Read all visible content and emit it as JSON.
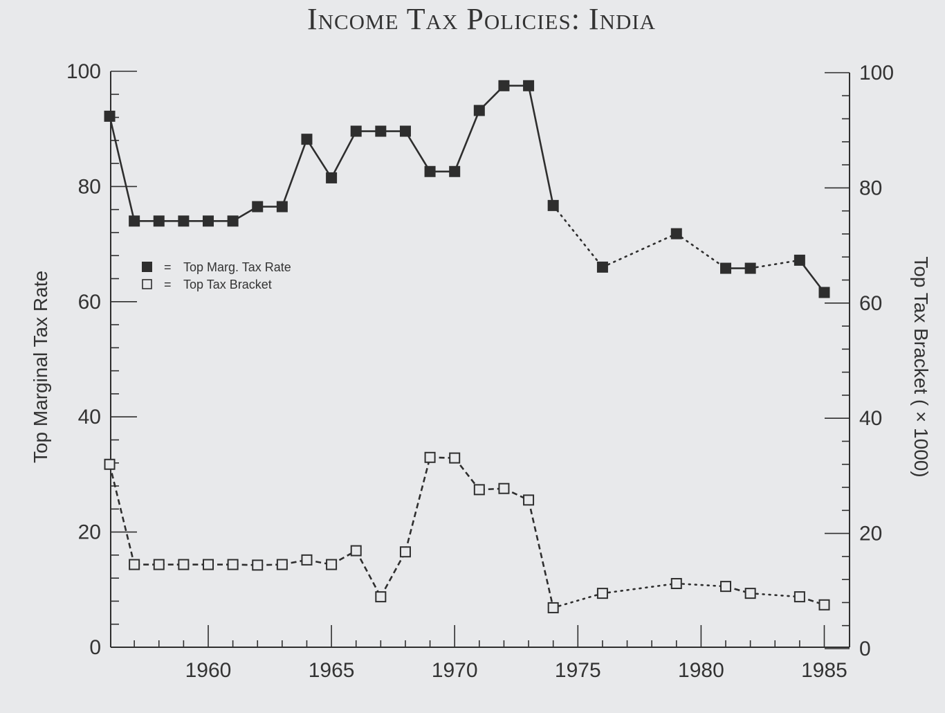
{
  "title": "Income Tax Policies: India",
  "chart_data": {
    "type": "line",
    "title": "Income Tax Policies: India",
    "xlabel": "",
    "ylabel": "Top Marginal Tax Rate",
    "ylabel_right": "Top Tax Bracket ( × 1000)",
    "xlim": [
      1956,
      1986
    ],
    "ylim": [
      0,
      100
    ],
    "ylim_right": [
      0,
      100
    ],
    "x_ticks": [
      1960,
      1965,
      1970,
      1975,
      1980,
      1985
    ],
    "y_ticks": [
      0,
      20,
      40,
      60,
      80,
      100
    ],
    "y_ticks_right": [
      0,
      20,
      40,
      60,
      80,
      100
    ],
    "grid": false,
    "legend_position": "upper left (inside)",
    "legend": [
      {
        "marker": "filled-square",
        "label": "Top Marg. Tax Rate"
      },
      {
        "marker": "open-square",
        "label": "Top Tax Bracket"
      }
    ],
    "series": [
      {
        "name": "Top Marg. Tax Rate",
        "axis": "left",
        "marker": "filled-square",
        "line": "solid (dotted across missing years)",
        "points": [
          [
            1956,
            92.2
          ],
          [
            1957,
            74.0
          ],
          [
            1958,
            74.0
          ],
          [
            1959,
            74.0
          ],
          [
            1960,
            74.0
          ],
          [
            1961,
            74.0
          ],
          [
            1962,
            76.5
          ],
          [
            1963,
            76.5
          ],
          [
            1964,
            88.2
          ],
          [
            1965,
            81.5
          ],
          [
            1966,
            89.6
          ],
          [
            1967,
            89.6
          ],
          [
            1968,
            89.6
          ],
          [
            1969,
            82.6
          ],
          [
            1970,
            82.6
          ],
          [
            1971,
            93.2
          ],
          [
            1972,
            97.5
          ],
          [
            1973,
            97.5
          ],
          [
            1974,
            76.7
          ],
          [
            1976,
            66.0
          ],
          [
            1979,
            71.8
          ],
          [
            1981,
            65.8
          ],
          [
            1982,
            65.8
          ],
          [
            1984,
            67.2
          ],
          [
            1985,
            61.6
          ]
        ]
      },
      {
        "name": "Top Tax Bracket",
        "axis": "right",
        "unit": "× 1000",
        "marker": "open-square",
        "line": "dashed (dotted across missing years)",
        "points": [
          [
            1956,
            32.0
          ],
          [
            1957,
            14.6
          ],
          [
            1958,
            14.6
          ],
          [
            1959,
            14.6
          ],
          [
            1960,
            14.6
          ],
          [
            1961,
            14.6
          ],
          [
            1962,
            14.5
          ],
          [
            1963,
            14.6
          ],
          [
            1964,
            15.4
          ],
          [
            1965,
            14.6
          ],
          [
            1966,
            17.0
          ],
          [
            1967,
            9.0
          ],
          [
            1968,
            16.8
          ],
          [
            1969,
            33.2
          ],
          [
            1970,
            33.1
          ],
          [
            1971,
            27.6
          ],
          [
            1972,
            27.8
          ],
          [
            1973,
            25.8
          ],
          [
            1974,
            7.1
          ],
          [
            1976,
            9.6
          ],
          [
            1979,
            11.3
          ],
          [
            1981,
            10.8
          ],
          [
            1982,
            9.6
          ],
          [
            1984,
            9.0
          ],
          [
            1985,
            7.6
          ]
        ]
      }
    ]
  }
}
